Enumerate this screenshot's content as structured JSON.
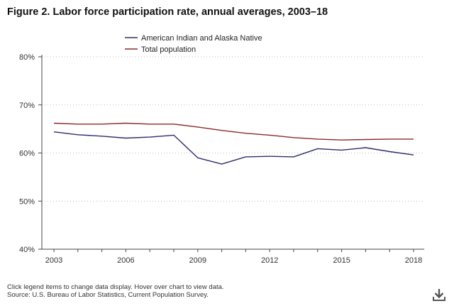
{
  "figure_title": "Figure 2. Labor force participation rate, annual averages, 2003–18",
  "notes": {
    "instructions": "Click legend items to change data display. Hover over chart to view data.",
    "source": "Source: U.S. Bureau of Labor Statistics, Current Population Survey."
  },
  "icons": {
    "download": "download-icon"
  },
  "chart_data": {
    "type": "line",
    "title": "Labor force participation rate, annual averages, 2003–18",
    "xlabel": "",
    "ylabel": "",
    "x": [
      2003,
      2004,
      2005,
      2006,
      2007,
      2008,
      2009,
      2010,
      2011,
      2012,
      2013,
      2014,
      2015,
      2016,
      2017,
      2018
    ],
    "ylim": [
      40,
      80
    ],
    "y_ticks": [
      40,
      50,
      60,
      70,
      80
    ],
    "y_tick_labels": [
      "40%",
      "50%",
      "60%",
      "70%",
      "80%"
    ],
    "x_ticks": [
      2003,
      2006,
      2009,
      2012,
      2015,
      2018
    ],
    "x_tick_labels": [
      "2003",
      "2006",
      "2009",
      "2012",
      "2015",
      "2018"
    ],
    "grid": "horizontal dotted",
    "legend_position": "top-center",
    "series": [
      {
        "name": "American Indian and Alaska Native",
        "color": "#2e2d6b",
        "values": [
          64.4,
          63.8,
          63.5,
          63.1,
          63.3,
          63.7,
          59.0,
          57.7,
          59.2,
          59.3,
          59.2,
          60.9,
          60.6,
          61.1,
          60.3,
          59.6
        ]
      },
      {
        "name": "Total population",
        "color": "#8b2a2a",
        "values": [
          66.2,
          66.0,
          66.0,
          66.2,
          66.0,
          66.0,
          65.4,
          64.7,
          64.1,
          63.7,
          63.2,
          62.9,
          62.7,
          62.8,
          62.9,
          62.9
        ]
      }
    ]
  }
}
